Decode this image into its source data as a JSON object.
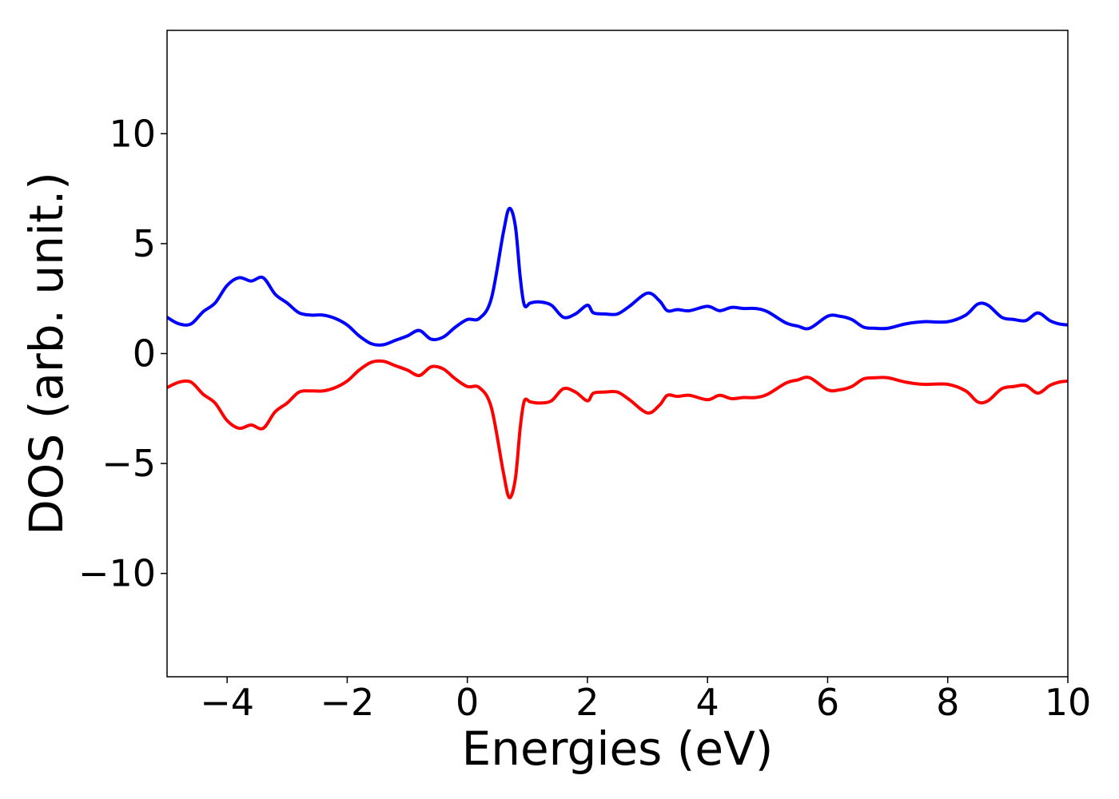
{
  "chart_data": {
    "type": "line",
    "title": "",
    "xlabel": "Energies (eV)",
    "ylabel": "DOS (arb. unit.)",
    "xlim": [
      -5,
      10
    ],
    "ylim": [
      -14.7,
      14.7
    ],
    "xticks": [
      -4,
      -2,
      0,
      2,
      4,
      6,
      8,
      10
    ],
    "xtick_labels": [
      "−4",
      "−2",
      "0",
      "2",
      "4",
      "6",
      "8",
      "10"
    ],
    "yticks": [
      -10,
      -5,
      0,
      5,
      10
    ],
    "ytick_labels": [
      "−10",
      "−5",
      "0",
      "5",
      "10"
    ],
    "grid": false,
    "legend": "none",
    "series": [
      {
        "color": "#0000ff",
        "x": [
          -5.0,
          -4.8,
          -4.6,
          -4.4,
          -4.2,
          -4.0,
          -3.8,
          -3.6,
          -3.4,
          -3.2,
          -3.0,
          -2.8,
          -2.6,
          -2.4,
          -2.2,
          -2.0,
          -1.8,
          -1.6,
          -1.4,
          -1.2,
          -1.0,
          -0.8,
          -0.6,
          -0.4,
          -0.2,
          0.0,
          0.2,
          0.4,
          0.6,
          0.7,
          0.8,
          0.88,
          0.95,
          1.05,
          1.2,
          1.4,
          1.6,
          1.8,
          2.0,
          2.1,
          2.3,
          2.5,
          2.7,
          3.0,
          3.2,
          3.33,
          3.5,
          3.7,
          4.0,
          4.2,
          4.4,
          4.6,
          4.8,
          5.0,
          5.3,
          5.5,
          5.7,
          6.0,
          6.2,
          6.4,
          6.6,
          6.8,
          7.0,
          7.3,
          7.6,
          8.0,
          8.3,
          8.5,
          8.67,
          8.9,
          9.1,
          9.3,
          9.5,
          9.7,
          9.85,
          10.0
        ],
        "y": [
          1.65,
          1.35,
          1.35,
          1.9,
          2.3,
          3.1,
          3.45,
          3.3,
          3.45,
          2.7,
          2.3,
          1.85,
          1.75,
          1.75,
          1.6,
          1.3,
          0.8,
          0.45,
          0.4,
          0.6,
          0.8,
          1.05,
          0.65,
          0.75,
          1.2,
          1.55,
          1.6,
          2.5,
          5.5,
          6.6,
          5.8,
          3.5,
          2.2,
          2.3,
          2.35,
          2.2,
          1.65,
          1.8,
          2.2,
          1.85,
          1.8,
          1.8,
          2.15,
          2.75,
          2.4,
          1.95,
          2.0,
          1.95,
          2.15,
          1.95,
          2.1,
          2.05,
          2.05,
          1.9,
          1.4,
          1.25,
          1.15,
          1.7,
          1.7,
          1.55,
          1.2,
          1.15,
          1.15,
          1.35,
          1.45,
          1.45,
          1.75,
          2.25,
          2.2,
          1.65,
          1.55,
          1.5,
          1.85,
          1.5,
          1.35,
          1.3
        ]
      },
      {
        "color": "#ff0000",
        "x": [
          -5.0,
          -4.8,
          -4.6,
          -4.4,
          -4.2,
          -4.0,
          -3.8,
          -3.6,
          -3.4,
          -3.2,
          -3.0,
          -2.8,
          -2.6,
          -2.4,
          -2.2,
          -2.0,
          -1.8,
          -1.6,
          -1.4,
          -1.2,
          -1.0,
          -0.8,
          -0.6,
          -0.4,
          -0.2,
          0.0,
          0.2,
          0.4,
          0.6,
          0.7,
          0.8,
          0.88,
          0.95,
          1.05,
          1.2,
          1.4,
          1.6,
          1.8,
          2.0,
          2.1,
          2.3,
          2.5,
          2.7,
          3.0,
          3.2,
          3.33,
          3.5,
          3.7,
          4.0,
          4.2,
          4.4,
          4.6,
          4.8,
          5.0,
          5.3,
          5.5,
          5.7,
          6.0,
          6.2,
          6.4,
          6.6,
          6.8,
          7.0,
          7.3,
          7.6,
          8.0,
          8.3,
          8.5,
          8.67,
          8.9,
          9.1,
          9.3,
          9.5,
          9.7,
          9.85,
          10.0
        ],
        "y": [
          -1.55,
          -1.3,
          -1.3,
          -1.85,
          -2.25,
          -3.05,
          -3.4,
          -3.25,
          -3.4,
          -2.65,
          -2.25,
          -1.75,
          -1.7,
          -1.7,
          -1.55,
          -1.25,
          -0.75,
          -0.4,
          -0.35,
          -0.55,
          -0.75,
          -1.0,
          -0.6,
          -0.7,
          -1.15,
          -1.5,
          -1.55,
          -2.45,
          -5.4,
          -6.55,
          -5.7,
          -3.4,
          -2.15,
          -2.2,
          -2.25,
          -2.15,
          -1.6,
          -1.75,
          -2.15,
          -1.8,
          -1.75,
          -1.75,
          -2.1,
          -2.7,
          -2.35,
          -1.9,
          -1.95,
          -1.9,
          -2.1,
          -1.9,
          -2.05,
          -2.0,
          -2.0,
          -1.85,
          -1.35,
          -1.2,
          -1.1,
          -1.65,
          -1.65,
          -1.5,
          -1.15,
          -1.1,
          -1.1,
          -1.3,
          -1.4,
          -1.4,
          -1.7,
          -2.2,
          -2.15,
          -1.6,
          -1.5,
          -1.45,
          -1.8,
          -1.45,
          -1.3,
          -1.25
        ]
      }
    ]
  }
}
